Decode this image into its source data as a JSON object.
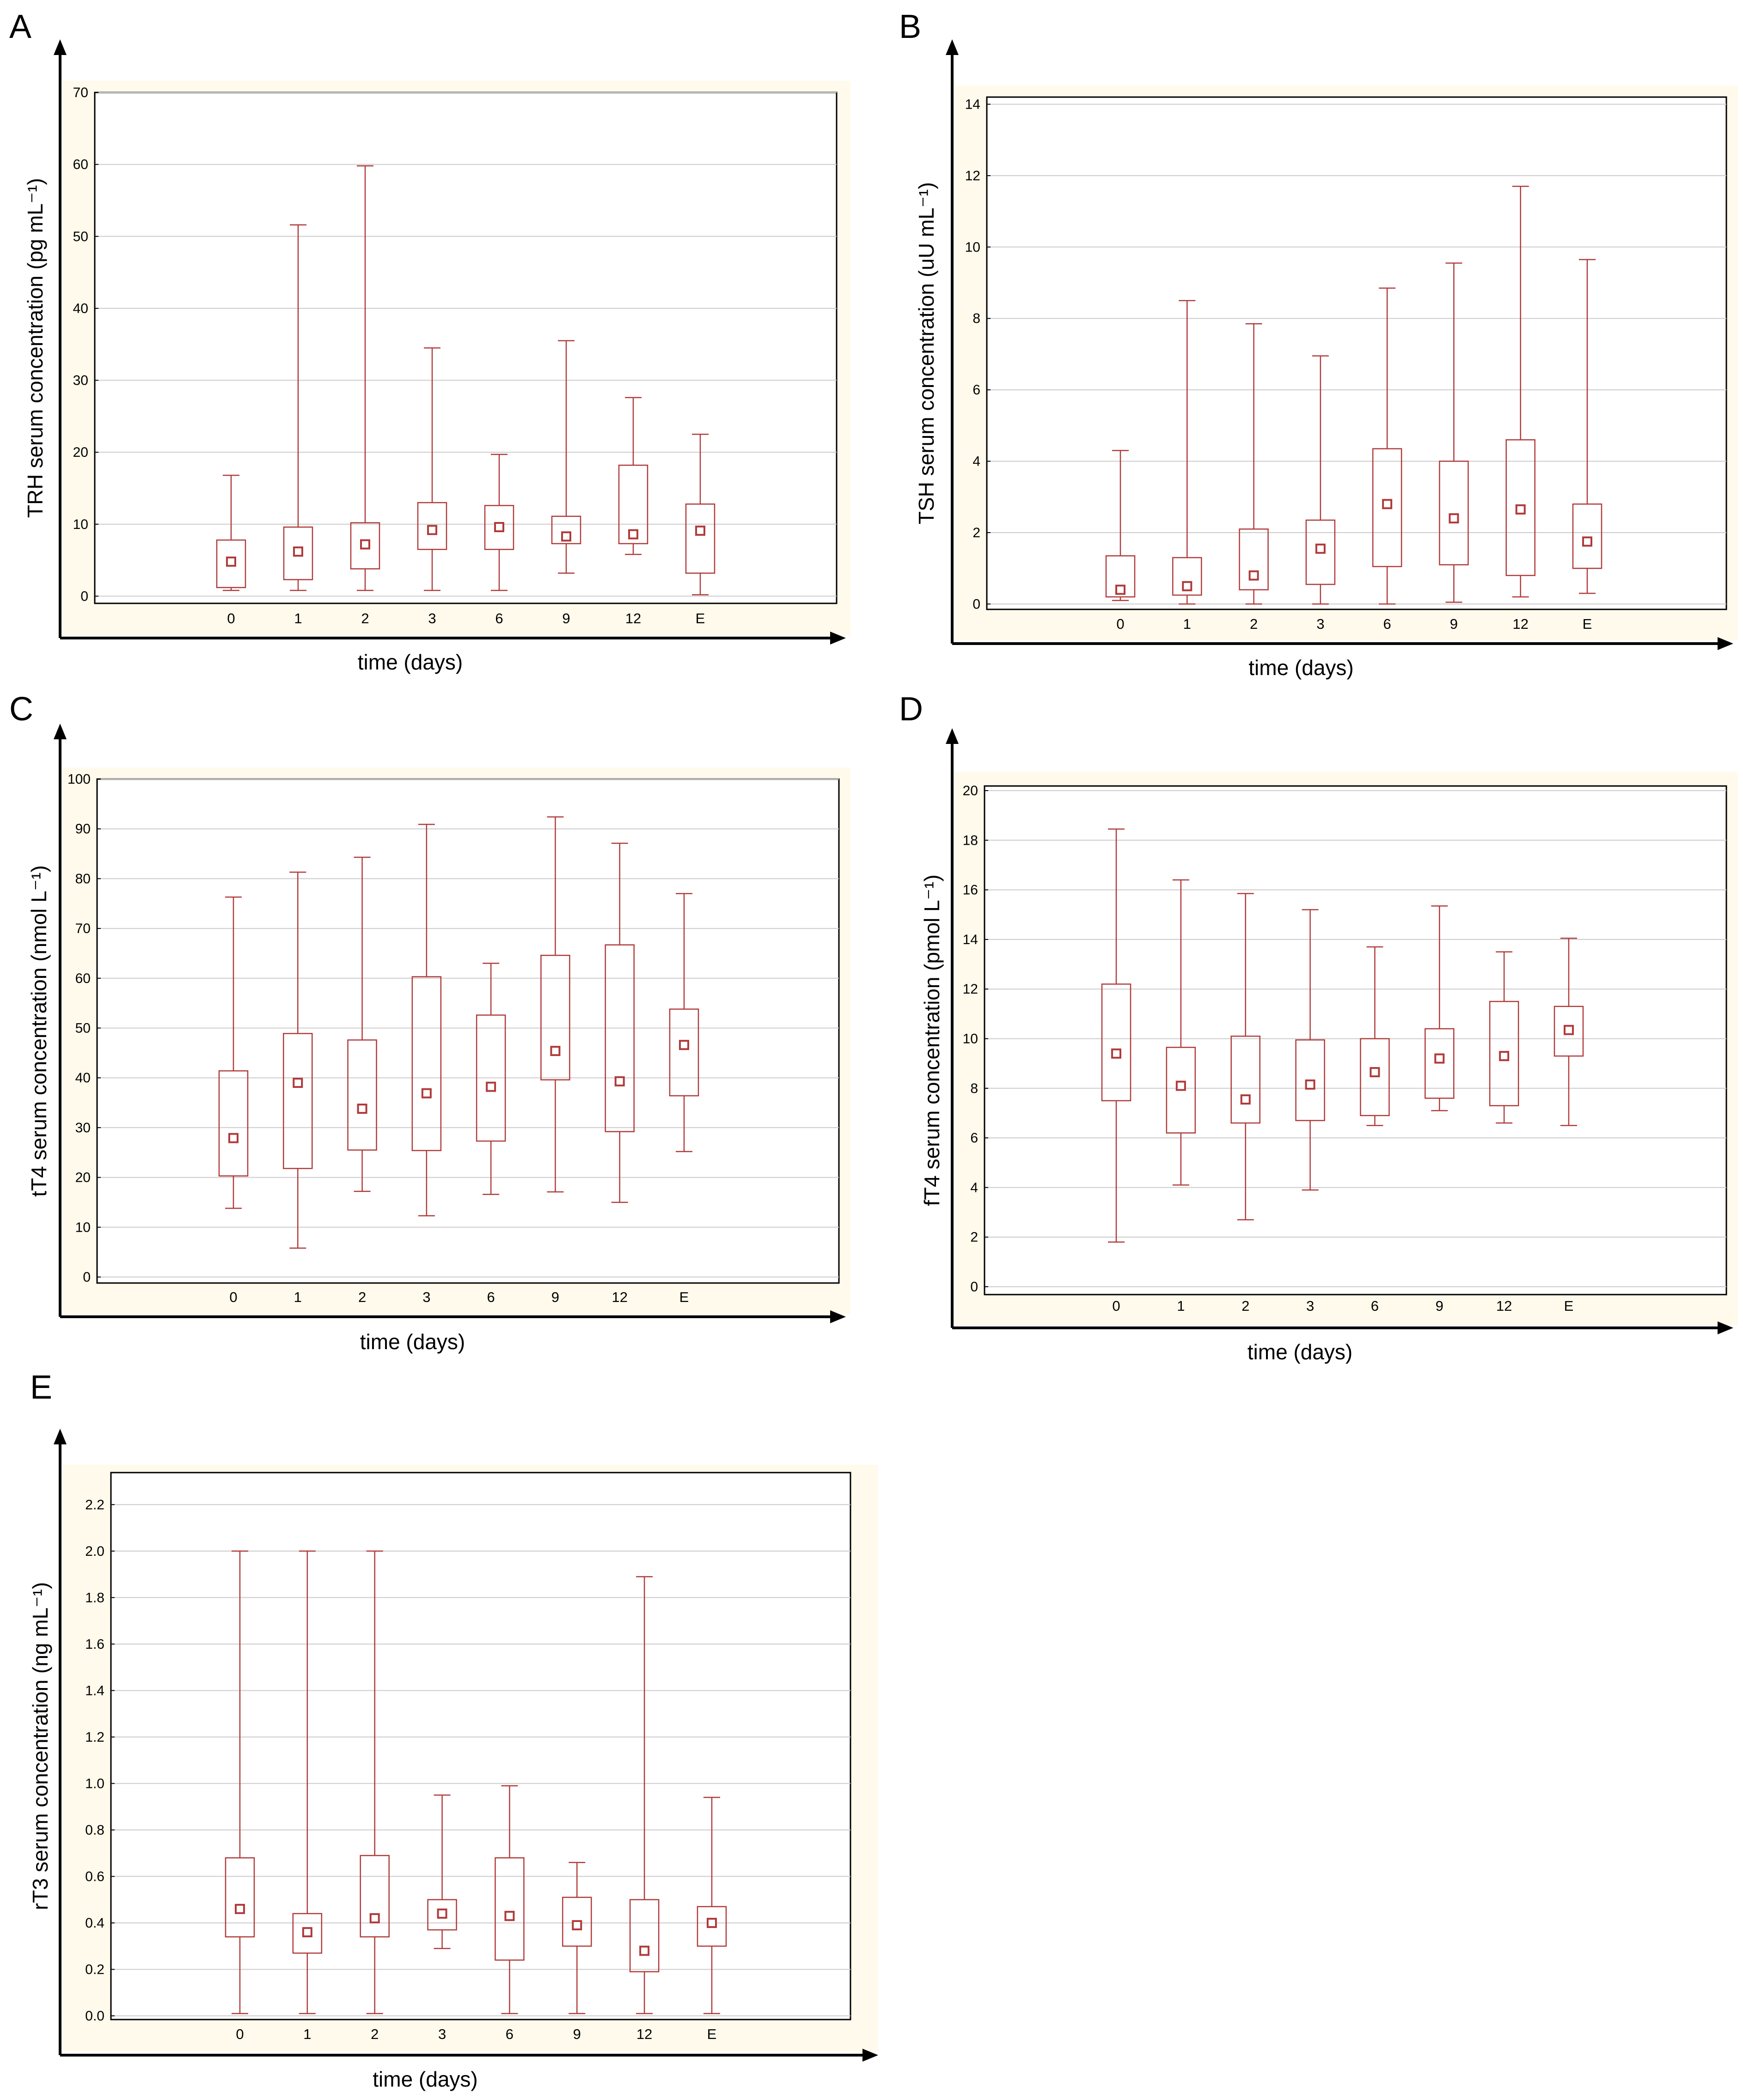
{
  "colors": {
    "box": "#b03a3a",
    "mean_fill": "#ffffff",
    "panel_bg": "#fffaeb",
    "grid": "#cccccc",
    "axis": "#000000"
  },
  "chart_data": [
    {
      "panel": "A",
      "type": "box",
      "ylabel": "TRH  serum concentration (pg mL⁻¹)",
      "xlabel": "time (days)",
      "categories": [
        "0",
        "1",
        "2",
        "3",
        "6",
        "9",
        "12",
        "E"
      ],
      "ylim": [
        -1,
        70
      ],
      "yticks": [
        0,
        10,
        20,
        30,
        40,
        50,
        60,
        70
      ],
      "ytick_labels": [
        "0",
        "10",
        "20",
        "30",
        "40",
        "50",
        "60",
        "70"
      ],
      "whisker_low": [
        0.8,
        0.8,
        0.8,
        0.8,
        0.8,
        3.2,
        5.8,
        0.2
      ],
      "q1": [
        1.2,
        2.3,
        3.8,
        6.5,
        6.5,
        7.3,
        7.3,
        3.2
      ],
      "center": [
        4.8,
        6.2,
        7.2,
        9.2,
        9.6,
        8.3,
        8.6,
        9.1
      ],
      "q3": [
        7.8,
        9.6,
        10.2,
        13.0,
        12.6,
        11.1,
        18.2,
        12.8
      ],
      "whisker_high": [
        16.8,
        51.6,
        59.8,
        34.5,
        19.7,
        35.5,
        27.6,
        22.5
      ]
    },
    {
      "panel": "B",
      "type": "box",
      "ylabel": "TSH serum concentration (uU mL⁻¹)",
      "xlabel": "time (days)",
      "categories": [
        "0",
        "1",
        "2",
        "3",
        "6",
        "9",
        "12",
        "E"
      ],
      "ylim": [
        -0.15,
        14.2
      ],
      "yticks": [
        0,
        2,
        4,
        6,
        8,
        10,
        12,
        14
      ],
      "ytick_labels": [
        "0",
        "2",
        "4",
        "6",
        "8",
        "10",
        "12",
        "14"
      ],
      "whisker_low": [
        0.1,
        0.0,
        0.0,
        0.0,
        0.0,
        0.05,
        0.2,
        0.3
      ],
      "q1": [
        0.2,
        0.25,
        0.4,
        0.55,
        1.05,
        1.1,
        0.8,
        1.0
      ],
      "center": [
        0.4,
        0.5,
        0.8,
        1.55,
        2.8,
        2.4,
        2.65,
        1.75
      ],
      "q3": [
        1.35,
        1.3,
        2.1,
        2.35,
        4.35,
        4.0,
        4.6,
        2.8
      ],
      "whisker_high": [
        4.3,
        8.5,
        7.85,
        6.95,
        8.85,
        9.55,
        11.7,
        9.65
      ]
    },
    {
      "panel": "C",
      "type": "box",
      "ylabel": "tT4 serum concentration (nmol L⁻¹)",
      "xlabel": "time (days)",
      "categories": [
        "0",
        "1",
        "2",
        "3",
        "6",
        "9",
        "12",
        "E"
      ],
      "ylim": [
        0,
        100
      ],
      "yticks": [
        0,
        10,
        20,
        30,
        40,
        50,
        60,
        70,
        80,
        90,
        100
      ],
      "ytick_labels": [
        "0",
        "10",
        "20",
        "30",
        "40",
        "50",
        "60",
        "70",
        "80",
        "90",
        "100"
      ],
      "whisker_low": [
        13.8,
        5.8,
        17.2,
        12.3,
        16.6,
        17.1,
        15.0,
        25.2
      ],
      "q1": [
        20.3,
        21.8,
        25.5,
        25.4,
        27.3,
        39.6,
        29.2,
        36.4
      ],
      "center": [
        27.9,
        39.0,
        33.8,
        36.9,
        38.2,
        45.4,
        39.3,
        46.6
      ],
      "q3": [
        41.4,
        48.9,
        47.6,
        60.3,
        52.6,
        64.6,
        66.7,
        53.8
      ],
      "whisker_high": [
        76.3,
        81.3,
        84.3,
        90.9,
        63.0,
        92.4,
        87.1,
        77.0
      ]
    },
    {
      "panel": "D",
      "type": "box",
      "ylabel": "fT4 serum concentration (pmol L⁻¹)",
      "xlabel": "time (days)",
      "categories": [
        "0",
        "1",
        "2",
        "3",
        "6",
        "9",
        "12",
        "E"
      ],
      "ylim": [
        0,
        20
      ],
      "yticks": [
        0,
        2,
        4,
        6,
        8,
        10,
        12,
        14,
        16,
        18,
        20
      ],
      "ytick_labels": [
        "0",
        "2",
        "4",
        "6",
        "8",
        "10",
        "12",
        "14",
        "16",
        "18",
        "20"
      ],
      "whisker_low": [
        1.8,
        4.1,
        2.7,
        3.9,
        6.5,
        7.1,
        6.6,
        6.5
      ],
      "q1": [
        7.5,
        6.2,
        6.6,
        6.7,
        6.9,
        7.6,
        7.3,
        9.3
      ],
      "center": [
        9.4,
        8.1,
        7.55,
        8.15,
        8.65,
        9.2,
        9.3,
        10.35
      ],
      "q3": [
        12.2,
        9.65,
        10.1,
        9.95,
        10.0,
        10.4,
        11.5,
        11.3
      ],
      "whisker_high": [
        18.45,
        16.4,
        15.85,
        15.2,
        13.7,
        15.35,
        13.5,
        14.05
      ]
    },
    {
      "panel": "E",
      "type": "box",
      "ylabel": "rT3  serum concentration (ng mL⁻¹)",
      "xlabel": "time (days)",
      "categories": [
        "0",
        "1",
        "2",
        "3",
        "6",
        "9",
        "12",
        "E"
      ],
      "ylim": [
        0,
        2.3
      ],
      "yticks": [
        0,
        0.2,
        0.4,
        0.6,
        0.8,
        1.0,
        1.2,
        1.4,
        1.6,
        1.8,
        2.0,
        2.2
      ],
      "ytick_labels": [
        "0.0",
        "0.2",
        "0.4",
        "0.6",
        "0.8",
        "1.0",
        "1.2",
        "1.4",
        "1.6",
        "1.8",
        "2.0",
        "2.2"
      ],
      "whisker_low": [
        0.01,
        0.01,
        0.01,
        0.29,
        0.01,
        0.01,
        0.01,
        0.01
      ],
      "q1": [
        0.34,
        0.27,
        0.34,
        0.37,
        0.24,
        0.3,
        0.19,
        0.3
      ],
      "center": [
        0.46,
        0.36,
        0.42,
        0.44,
        0.43,
        0.39,
        0.28,
        0.4
      ],
      "q3": [
        0.68,
        0.44,
        0.69,
        0.5,
        0.68,
        0.51,
        0.5,
        0.47
      ],
      "whisker_high": [
        2.0,
        2.0,
        2.0,
        0.95,
        0.99,
        0.66,
        1.89,
        0.94
      ]
    }
  ]
}
